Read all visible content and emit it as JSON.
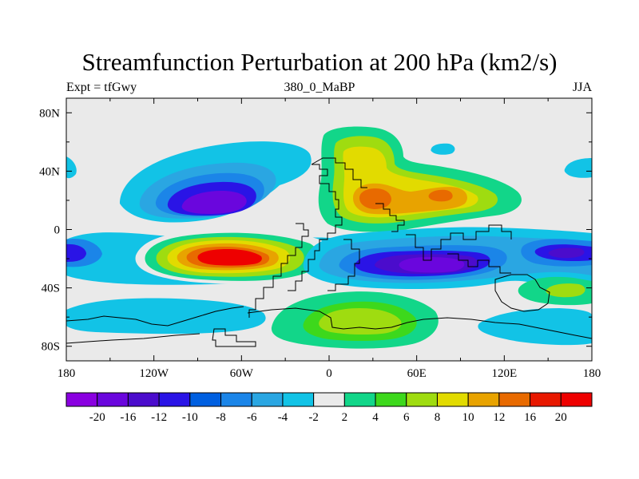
{
  "chart_data": {
    "type": "contour_map",
    "title": "Streamfunction Perturbation at 200 hPa (km2/s)",
    "left_string": "Expt = tfGwy",
    "center_string": "380_0_MaBP",
    "right_string": "JJA",
    "x_ticks": [
      {
        "lon": -180,
        "label": "180"
      },
      {
        "lon": -120,
        "label": "120W"
      },
      {
        "lon": -60,
        "label": "60W"
      },
      {
        "lon": 0,
        "label": "0"
      },
      {
        "lon": 60,
        "label": "60E"
      },
      {
        "lon": 120,
        "label": "120E"
      },
      {
        "lon": 180,
        "label": "180"
      }
    ],
    "y_ticks": [
      {
        "lat": 80,
        "label": "80N"
      },
      {
        "lat": 40,
        "label": "40N"
      },
      {
        "lat": 0,
        "label": "0"
      },
      {
        "lat": -40,
        "label": "40S"
      },
      {
        "lat": -80,
        "label": "80S"
      }
    ],
    "colorbar": {
      "labels": [
        "-20",
        "-16",
        "-12",
        "-10",
        "-8",
        "-6",
        "-4",
        "-2",
        "2",
        "4",
        "6",
        "8",
        "10",
        "12",
        "16",
        "20"
      ],
      "colors": [
        "#8a00e0",
        "#6a06dd",
        "#4b0ccc",
        "#2a14e6",
        "#005fe0",
        "#1b85e8",
        "#2aa6e2",
        "#12c3e6",
        "#eaeaea",
        "#12d689",
        "#3dd81c",
        "#9fdc10",
        "#e2db00",
        "#e8a300",
        "#e86a00",
        "#e81800",
        "#ee0000"
      ]
    },
    "features": [
      {
        "name": "neg-core-south-america",
        "lon": -80,
        "lat": 16,
        "value": -18
      },
      {
        "name": "pos-core-south-atlantic",
        "lon": -58,
        "lat": -18,
        "value": 22
      },
      {
        "name": "neg-core-indian-ocean",
        "lon": 68,
        "lat": -22,
        "value": -18
      },
      {
        "name": "pos-core-africa-arabia",
        "lon": 40,
        "lat": 20,
        "value": 14
      },
      {
        "name": "pos-core-south-africa",
        "lon": 30,
        "lat": -62,
        "value": 8
      },
      {
        "name": "neg-core-west-pacific",
        "lon": 170,
        "lat": -17,
        "value": -10
      },
      {
        "name": "neg-core-east-pacific",
        "lon": -178,
        "lat": -16,
        "value": -10
      }
    ]
  }
}
